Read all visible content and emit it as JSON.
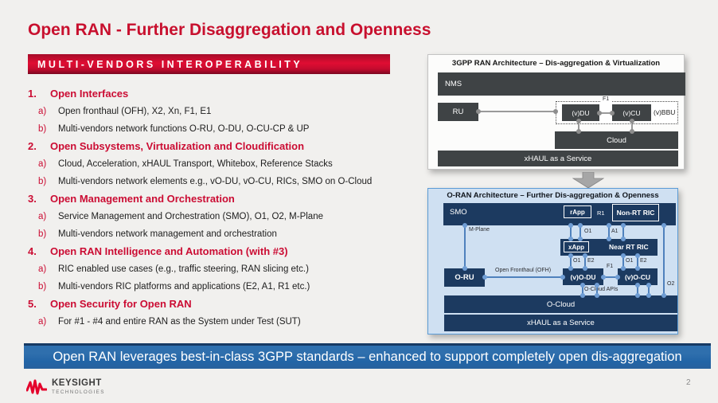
{
  "slide": {
    "title": "Open RAN - Further Disaggregation and Openness",
    "kicker": "MULTI-VENDORS INTEROPERABILITY",
    "takeaway": "Open RAN leverages best-in-class 3GPP standards – enhanced to support completely open dis-aggregation",
    "page_number": "2"
  },
  "list": {
    "items": [
      {
        "num": "1.",
        "heading": "Open Interfaces",
        "subs": [
          {
            "letter": "a)",
            "text": "Open fronthaul (OFH), X2, Xn, F1, E1"
          },
          {
            "letter": "b)",
            "text": "Multi-vendors network functions O-RU, O-DU, O-CU-CP & UP"
          }
        ]
      },
      {
        "num": "2.",
        "heading": "Open Subsystems, Virtualization and Cloudification",
        "subs": [
          {
            "letter": "a)",
            "text": "Cloud, Acceleration, xHAUL Transport, Whitebox, Reference Stacks"
          },
          {
            "letter": "b)",
            "text": "Multi-vendors network elements e.g., vO-DU, vO-CU, RICs, SMO on O-Cloud"
          }
        ]
      },
      {
        "num": "3.",
        "heading": "Open Management and Orchestration",
        "subs": [
          {
            "letter": "a)",
            "text": "Service Management and Orchestration (SMO), O1, O2, M-Plane"
          },
          {
            "letter": "b)",
            "text": "Multi-vendors network management and orchestration"
          }
        ]
      },
      {
        "num": "4.",
        "heading": "Open RAN Intelligence and Automation (with #3)",
        "subs": [
          {
            "letter": "a)",
            "text": "RIC enabled use cases (e.g., traffic steering, RAN slicing etc.)"
          },
          {
            "letter": "b)",
            "text": "Multi-vendors RIC platforms and applications (E2, A1, R1 etc.)"
          }
        ]
      },
      {
        "num": "5.",
        "heading": "Open Security for Open RAN",
        "subs": [
          {
            "letter": "a)",
            "text": "For #1 - #4 and entire RAN as the System under Test (SUT)"
          }
        ]
      }
    ]
  },
  "diagram_3gpp": {
    "title": "3GPP RAN Architecture – Dis-aggregation & Virtualization",
    "boxes": {
      "nms": "NMS",
      "ru": "RU",
      "vdu": "(v)DU",
      "vcu": "(v)CU",
      "vbbu": "(v)BBU",
      "cloud": "Cloud",
      "xhaul": "xHAUL as a Service"
    },
    "labels": {
      "f1": "F1"
    }
  },
  "diagram_oran": {
    "title": "O-RAN Architecture – Further Dis-aggregation & Openness",
    "boxes": {
      "smo": "SMO",
      "rapp": "rApp",
      "nonrt_ric": "Non-RT RIC",
      "xapp": "xApp",
      "nearrt_ric": "Near RT RIC",
      "oru": "O-RU",
      "vodu": "(v)O-DU",
      "vocu": "(v)O-CU",
      "ocloud": "O-Cloud",
      "xhaul": "xHAUL as a Service"
    },
    "labels": {
      "r1": "R1",
      "mplane": "M-Plane",
      "o1": "O1",
      "a1": "A1",
      "e2": "E2",
      "f1": "F1",
      "ofh": "Open Fronthaul (OFH)",
      "ocloud_apis": "O-Cloud APIs",
      "o2": "O2"
    }
  },
  "footer": {
    "brand": "KEYSIGHT",
    "brand_sub": "TECHNOLOGIES"
  },
  "colors": {
    "accent_red": "#c8102e",
    "charcoal": "#3f4345",
    "navy": "#1c3a60",
    "panel_blue": "#cfe0f2",
    "connector_blue": "#4f81bd",
    "banner_blue": "#2b68a7"
  }
}
